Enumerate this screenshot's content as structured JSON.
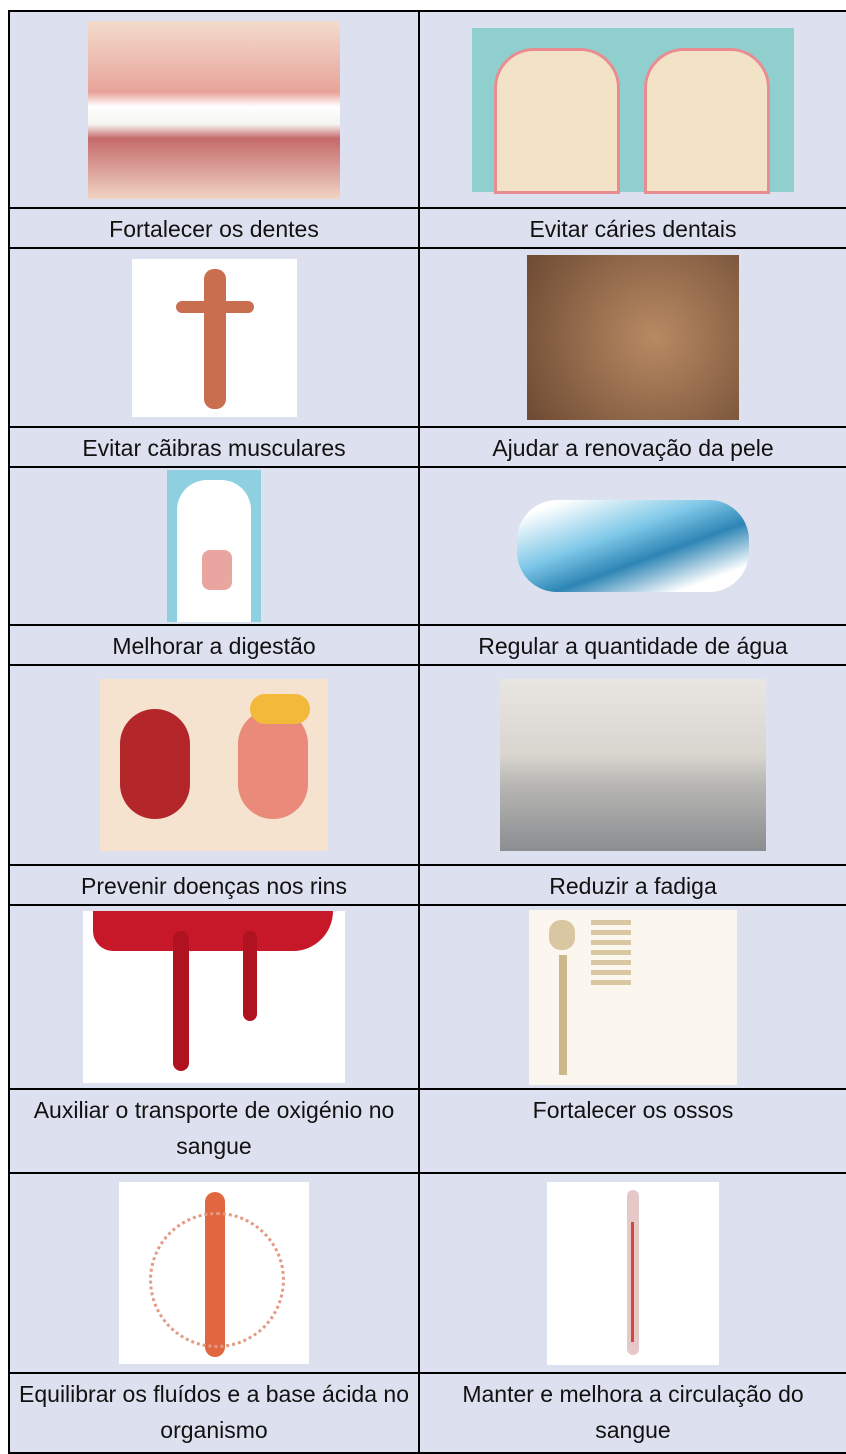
{
  "table": {
    "rows": [
      [
        "Fortalecer os dentes",
        "Evitar cáries dentais"
      ],
      [
        "Evitar cãibras musculares",
        "Ajudar a renovação da pele"
      ],
      [
        "Melhorar a digestão",
        "Regular a quantidade de água"
      ],
      [
        "Prevenir doenças nos rins",
        "Reduzir a fadiga"
      ],
      [
        "Auxiliar o transporte de oxigénio no sangue",
        "Fortalecer os ossos"
      ],
      [
        "Equilibrar os fluídos e a base ácida no organismo",
        "Manter e melhora a circulação do sangue"
      ]
    ]
  }
}
